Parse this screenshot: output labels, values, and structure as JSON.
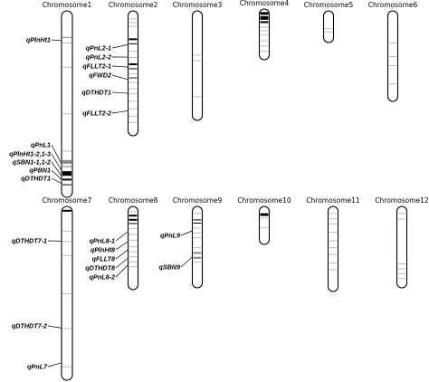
{
  "colors": {
    "band_dark": "#000000",
    "band_grey": "#888888",
    "band_light": "#bdbdbd",
    "outline": "#000000"
  },
  "chromosomes": [
    {
      "id": "chr1",
      "title": "Chromosome1",
      "qtls": [
        {
          "label": "qPlnHt1",
          "band": 0.16
        },
        {
          "label": "qPnL1",
          "band": 0.82
        },
        {
          "label": "qPlnHt1-2,1-3",
          "band": 0.855
        },
        {
          "label": "qSBN1-1,1-2",
          "band": 0.885
        },
        {
          "label": "qPBN1",
          "band": 0.905
        },
        {
          "label": "qDTHDT1",
          "band": 0.925
        }
      ]
    },
    {
      "id": "chr2",
      "title": "Chromosome2",
      "qtls": [
        {
          "label": "qPnL2-1",
          "band": 0.27
        },
        {
          "label": "qPnL2-2",
          "band": 0.37
        },
        {
          "label": "qFLLT2-1",
          "band": 0.45
        },
        {
          "label": "qFWD2",
          "band": 0.55
        },
        {
          "label": "qDTHDT1",
          "band": 0.66
        },
        {
          "label": "qFLLT2-2",
          "band": 0.8
        }
      ]
    },
    {
      "id": "chr3",
      "title": "Chromosome3",
      "qtls": []
    },
    {
      "id": "chr4",
      "title": "Chromosome4",
      "qtls": []
    },
    {
      "id": "chr5",
      "title": "Chromosome5",
      "qtls": []
    },
    {
      "id": "chr6",
      "title": "Chromosome6",
      "qtls": []
    },
    {
      "id": "chr7",
      "title": "Chromosome7",
      "qtls": [
        {
          "label": "qDTHDT7-1",
          "band": 0.2
        },
        {
          "label": "qDTHDT7-2",
          "band": 0.7
        },
        {
          "label": "qPnL7",
          "band": 0.9
        }
      ]
    },
    {
      "id": "chr8",
      "title": "Chromosome8",
      "qtls": [
        {
          "label": "qPnL8-1",
          "band": 0.3
        },
        {
          "label": "qPlnHt8",
          "band": 0.42
        },
        {
          "label": "qFLLT8",
          "band": 0.52
        },
        {
          "label": "qDTHDT8",
          "band": 0.62
        },
        {
          "label": "qPnL8-2",
          "band": 0.7
        }
      ]
    },
    {
      "id": "chr9",
      "title": "Chromosome9",
      "qtls": [
        {
          "label": "qPnL9",
          "band": 0.3
        },
        {
          "label": "qSBN9",
          "band": 0.62
        }
      ]
    },
    {
      "id": "chr10",
      "title": "Chromosome10",
      "qtls": []
    },
    {
      "id": "chr11",
      "title": "Chromosome11",
      "qtls": []
    },
    {
      "id": "chr12",
      "title": "Chromosome12",
      "qtls": []
    }
  ]
}
